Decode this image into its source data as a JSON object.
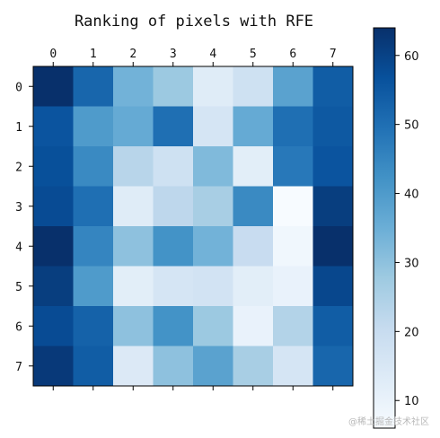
{
  "chart_data": {
    "type": "heatmap",
    "title": "Ranking of pixels with RFE",
    "x_ticks": [
      "0",
      "1",
      "2",
      "3",
      "4",
      "5",
      "6",
      "7"
    ],
    "y_ticks": [
      "0",
      "1",
      "2",
      "3",
      "4",
      "5",
      "6",
      "7"
    ],
    "x_axis_position": "top",
    "colormap": "Blues",
    "values": [
      [
        64,
        52,
        34,
        28,
        13,
        18,
        38,
        54
      ],
      [
        56,
        40,
        36,
        50,
        16,
        36,
        50,
        55
      ],
      [
        57,
        44,
        23,
        18,
        32,
        12,
        48,
        56
      ],
      [
        58,
        50,
        13,
        22,
        26,
        44,
        6,
        61
      ],
      [
        64,
        45,
        30,
        42,
        34,
        20,
        8,
        64
      ],
      [
        61,
        40,
        12,
        16,
        17,
        12,
        10,
        59
      ],
      [
        58,
        53,
        30,
        42,
        28,
        10,
        24,
        54
      ],
      [
        62,
        54,
        14,
        30,
        38,
        26,
        16,
        52
      ]
    ],
    "colorbar": {
      "min": 6,
      "max": 64,
      "ticks": [
        10,
        20,
        30,
        40,
        50,
        60
      ]
    }
  },
  "watermark": "@稀土掘金技术社区"
}
